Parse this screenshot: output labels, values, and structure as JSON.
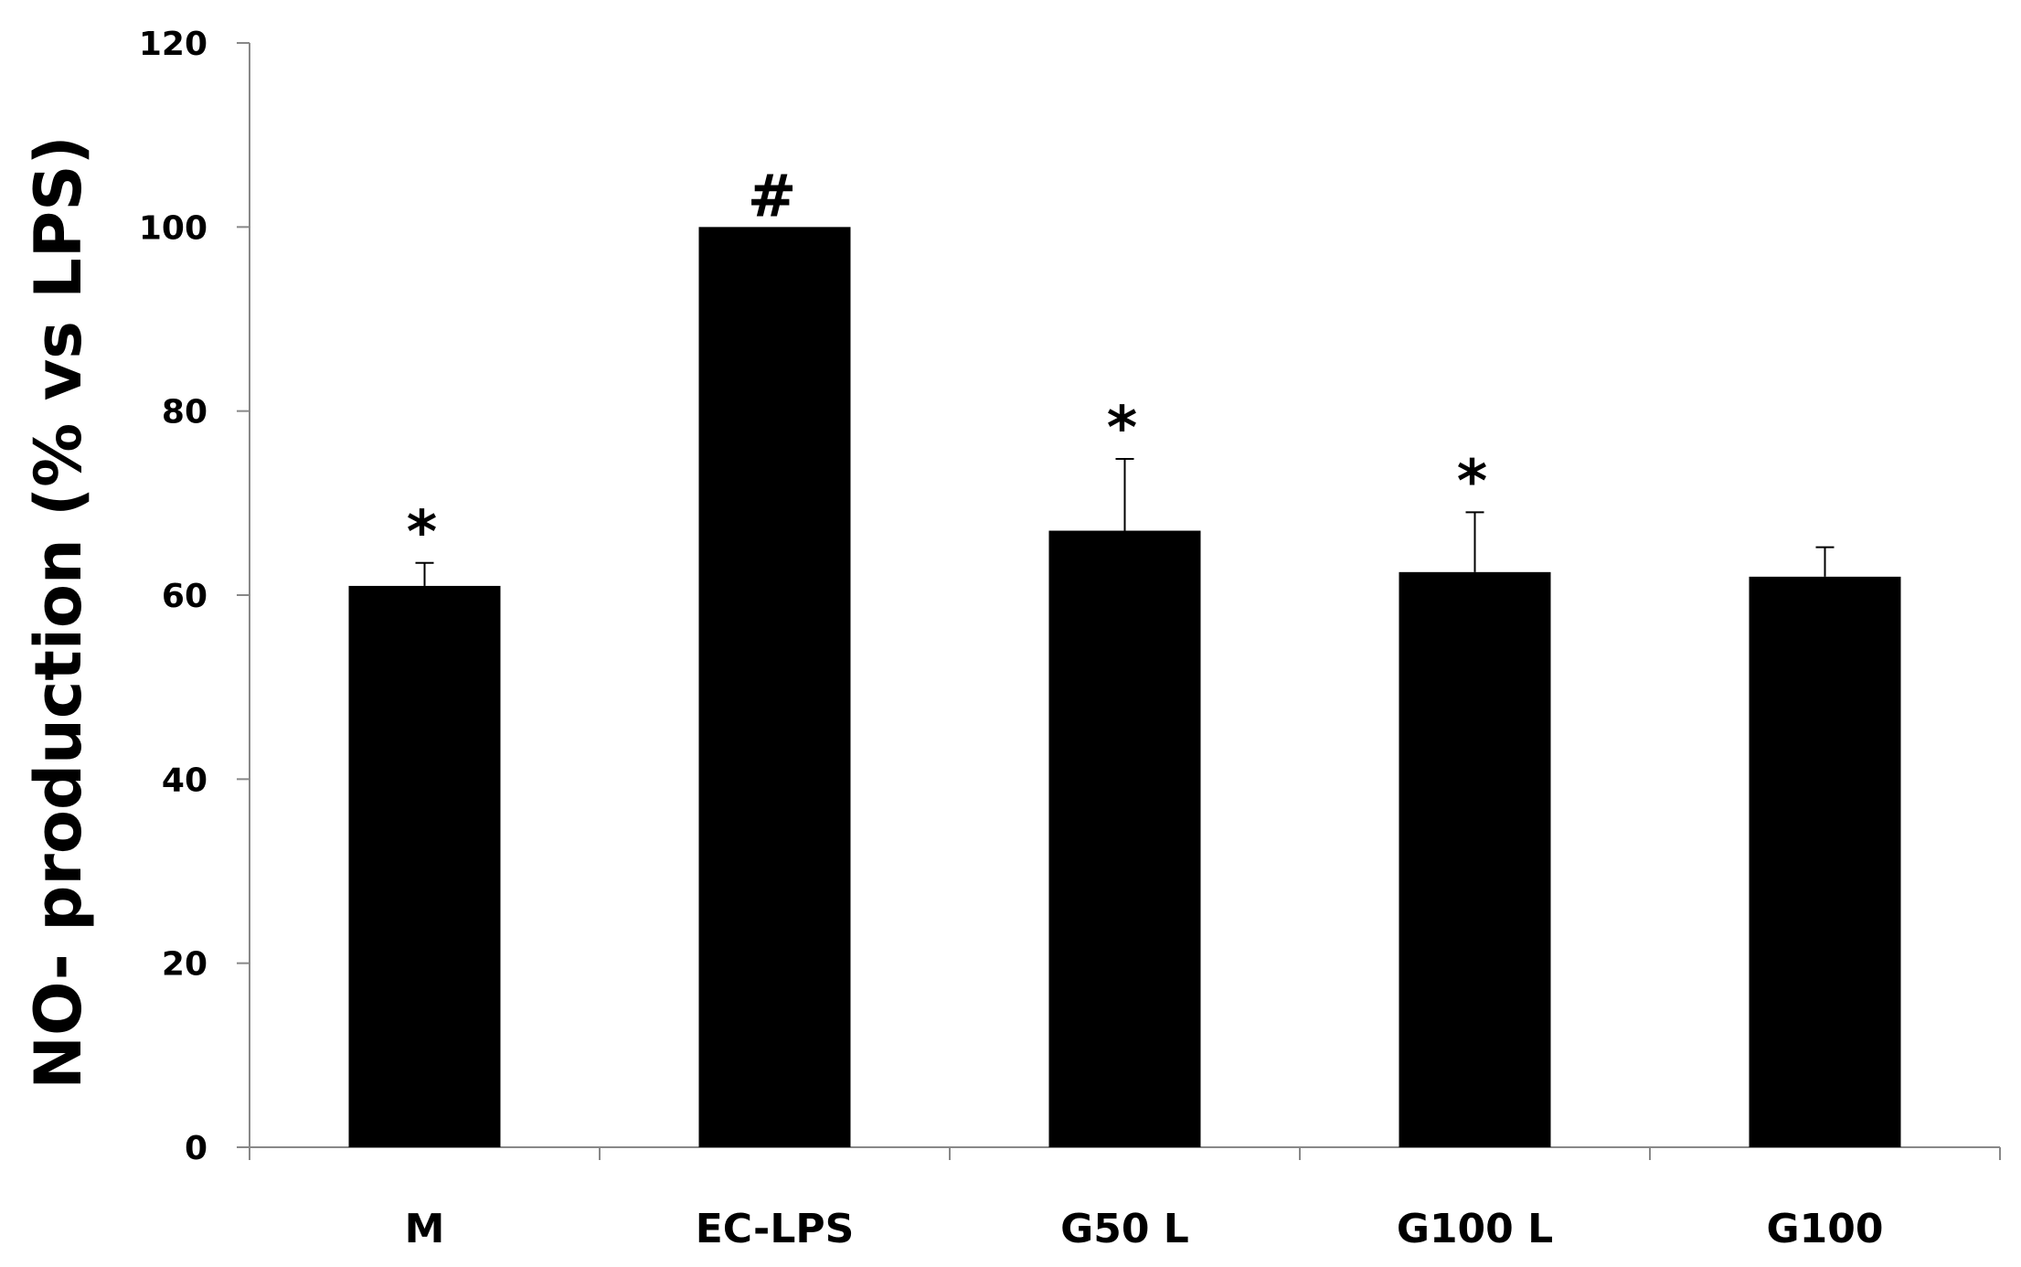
{
  "chart_data": {
    "type": "bar",
    "title": "",
    "xlabel": "",
    "ylabel": "NO- production (% vs LPS)",
    "ylim": [
      0,
      120
    ],
    "yticks": [
      0,
      20,
      40,
      60,
      80,
      100,
      120
    ],
    "grid": false,
    "legend": "none",
    "categories": [
      "M",
      "EC-LPS",
      "G50 L",
      "G100 L",
      "G100"
    ],
    "series": [
      {
        "values": [
          61,
          100,
          67,
          62.5,
          62
        ],
        "error": [
          2.5,
          0,
          7.8,
          6.5,
          3.2
        ],
        "significance": [
          "*",
          "#",
          "*",
          "*",
          ""
        ],
        "color": "#000000"
      }
    ]
  }
}
